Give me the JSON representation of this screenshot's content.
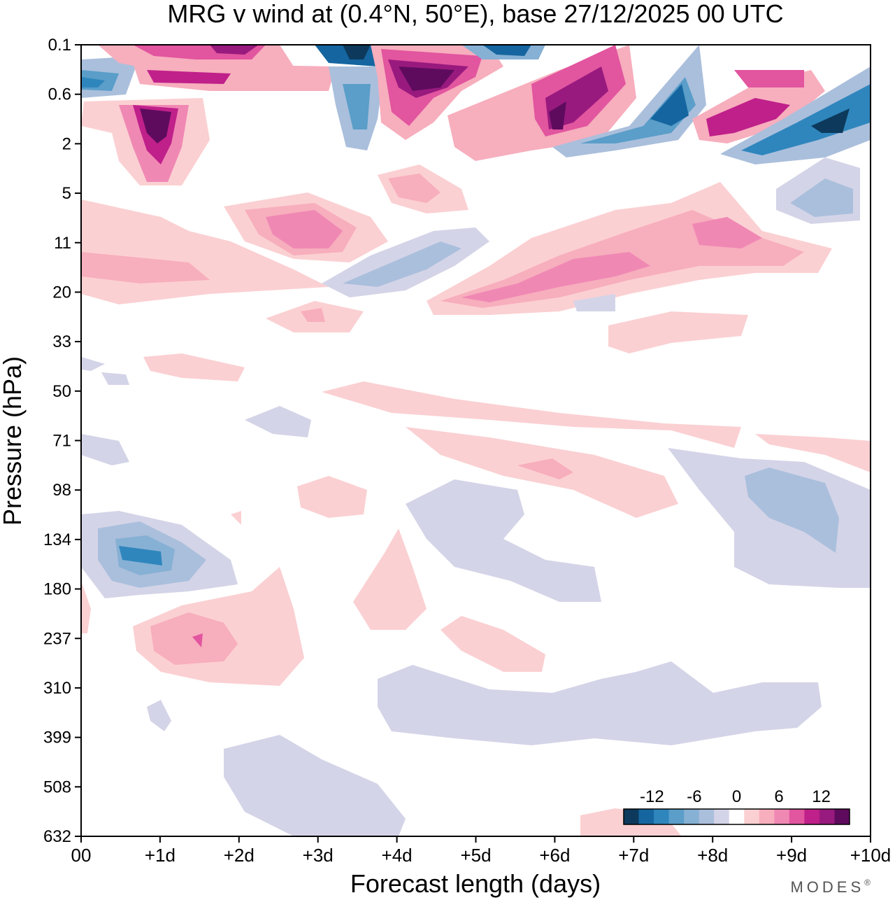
{
  "chart_data": {
    "type": "heatmap",
    "title": "MRG v wind at (0.4°N, 50°E),  base 27/12/2025  00 UTC",
    "xlabel": "Forecast length (days)",
    "ylabel": "Pressure (hPa)",
    "x_ticks": [
      "00",
      "+1d",
      "+2d",
      "+3d",
      "+4d",
      "+5d",
      "+6d",
      "+7d",
      "+8d",
      "+9d",
      "+10d"
    ],
    "x_range_days": [
      0,
      10
    ],
    "y_ticks": [
      "0.1",
      "0.6",
      "2",
      "5",
      "11",
      "20",
      "33",
      "50",
      "71",
      "98",
      "134",
      "180",
      "237",
      "310",
      "399",
      "508",
      "632"
    ],
    "y_scale": "log",
    "contour_interval": 2,
    "levels": [
      -16,
      -14,
      -12,
      -10,
      -8,
      -6,
      -4,
      -2,
      2,
      4,
      6,
      8,
      10,
      12,
      14,
      16
    ],
    "colors": [
      "#0d3a5c",
      "#1566a0",
      "#2f86bd",
      "#5a9ec9",
      "#86b0d4",
      "#aabfdc",
      "#d4d4e8",
      "#ffffff",
      "#fbd0d2",
      "#f7aebd",
      "#f088b4",
      "#e2559f",
      "#c0208a",
      "#991a7e",
      "#5e0b5e"
    ],
    "legend": {
      "position": "bottom-right",
      "tick_labels": [
        "-12",
        "-6",
        "0",
        "6",
        "12"
      ],
      "tick_values": [
        -12,
        -6,
        0,
        6,
        12
      ]
    },
    "features": [
      {
        "day": 1.0,
        "pressure": 1.5,
        "v": 14
      },
      {
        "day": 4.4,
        "pressure": 0.5,
        "v": 14
      },
      {
        "day": 3.5,
        "pressure": 0.1,
        "v": -16
      },
      {
        "day": 0.2,
        "pressure": 0.5,
        "v": -12
      },
      {
        "day": 7.5,
        "pressure": 1.3,
        "v": -14
      },
      {
        "day": 9.5,
        "pressure": 1.5,
        "v": -14
      },
      {
        "day": 6.0,
        "pressure": 1.3,
        "v": 14
      },
      {
        "day": 8.5,
        "pressure": 1.2,
        "v": 12
      },
      {
        "day": 2.8,
        "pressure": 9,
        "v": 8
      },
      {
        "day": 6.5,
        "pressure": 16,
        "v": 8
      },
      {
        "day": 8.1,
        "pressure": 11,
        "v": 8
      },
      {
        "day": 0.8,
        "pressure": 140,
        "v": -10
      },
      {
        "day": 1.5,
        "pressure": 240,
        "v": 6
      },
      {
        "day": 9.5,
        "pressure": 110,
        "v": -6
      },
      {
        "day": 4.5,
        "pressure": 15,
        "v": -6
      }
    ]
  },
  "brand": "MODES",
  "brand_mark": "®"
}
